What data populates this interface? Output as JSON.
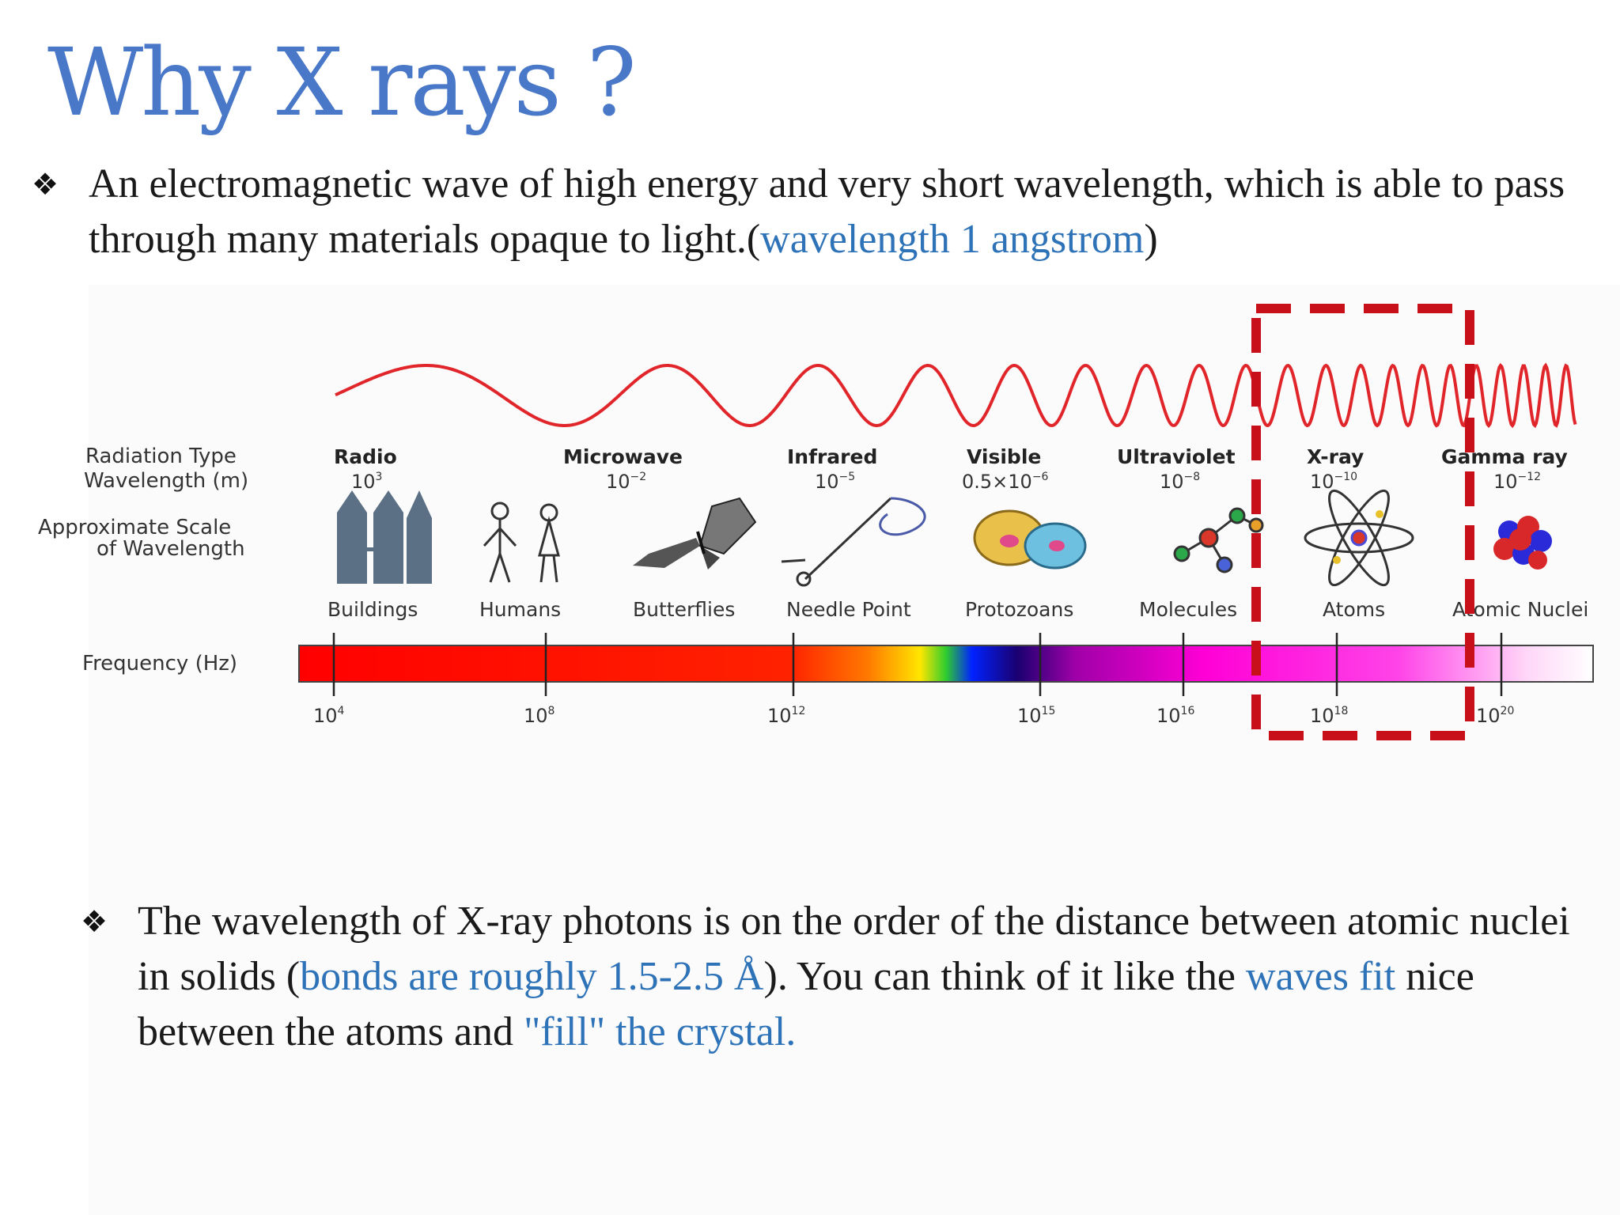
{
  "slide": {
    "title": "Why X rays ?",
    "bullet_marker": "❖",
    "bullet1": {
      "text_before": "An electromagnetic wave of high energy and very short wavelength, which is able to pass through many materials opaque to light.(",
      "highlight": "wavelength 1 angstrom",
      "text_after": ")"
    },
    "bullet2": {
      "part1": "The wavelength of X-ray photons is on the order of the distance between atomic nuclei in solids (",
      "highlight1": "bonds are roughly 1.5-2.5 Å",
      "part2": "). You can think of it like the ",
      "highlight2": "waves fit",
      "part3": " nice between the atoms and ",
      "highlight3": "\"fill\" the crystal."
    }
  },
  "diagram": {
    "row_labels": {
      "radiation_type": "Radiation Type",
      "wavelength": "Wavelength (m)",
      "scale_line1": "Approximate Scale",
      "scale_line2": "of Wavelength",
      "frequency": "Frequency (Hz)"
    },
    "radiation_types": [
      {
        "name": "Radio",
        "wavelength_base": "10",
        "wavelength_exp": "3",
        "scale_object": "Buildings",
        "icon": "buildings-icon"
      },
      {
        "name": "",
        "wavelength_base": "",
        "wavelength_exp": "",
        "scale_object": "Humans",
        "icon": "humans-icon"
      },
      {
        "name": "Microwave",
        "wavelength_base": "10",
        "wavelength_exp": "−2",
        "scale_object": "Butterflies",
        "icon": "butterfly-icon"
      },
      {
        "name": "Infrared",
        "wavelength_base": "10",
        "wavelength_exp": "−5",
        "scale_object": "Needle Point",
        "icon": "needle-icon"
      },
      {
        "name": "Visible",
        "wavelength_base": "0.5×10",
        "wavelength_exp": "−6",
        "scale_object": "Protozoans",
        "icon": "protozoan-icon"
      },
      {
        "name": "Ultraviolet",
        "wavelength_base": "10",
        "wavelength_exp": "−8",
        "scale_object": "Molecules",
        "icon": "molecule-icon"
      },
      {
        "name": "X-ray",
        "wavelength_base": "10",
        "wavelength_exp": "−10",
        "scale_object": "Atoms",
        "icon": "atom-icon"
      },
      {
        "name": "Gamma ray",
        "wavelength_base": "10",
        "wavelength_exp": "−12",
        "scale_object": "Atomic Nuclei",
        "icon": "nucleus-icon"
      }
    ],
    "frequency_ticks": [
      {
        "base": "10",
        "exp": "4"
      },
      {
        "base": "10",
        "exp": "8"
      },
      {
        "base": "10",
        "exp": "12"
      },
      {
        "base": "10",
        "exp": "15"
      },
      {
        "base": "10",
        "exp": "16"
      },
      {
        "base": "10",
        "exp": "18"
      },
      {
        "base": "10",
        "exp": "20"
      }
    ],
    "highlight_region": "X-ray",
    "colors": {
      "title": "#4a78c8",
      "highlight_text": "#2e73b8",
      "wave": "#e0262a",
      "highlight_box": "#c8101a"
    }
  }
}
